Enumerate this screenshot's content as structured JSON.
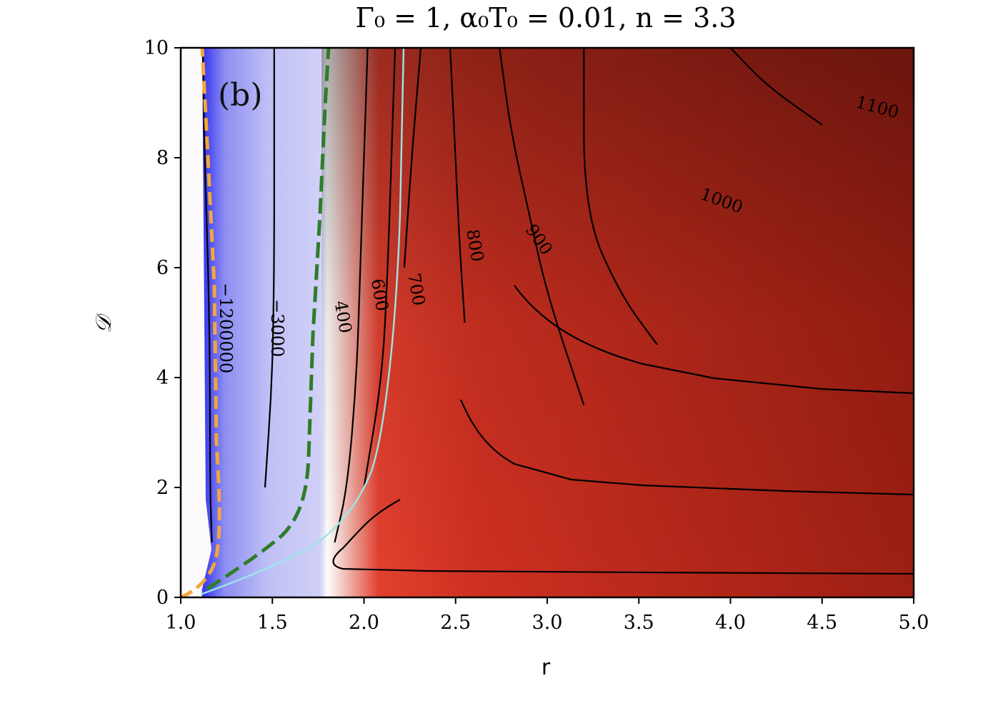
{
  "chart_data": {
    "type": "heatmap",
    "title": "Γ₀ = 1, α₀T₀ = 0.01, n = 3.3",
    "panel_label": "(b)",
    "xlabel": "r",
    "ylabel": "𝒟",
    "xlim": [
      1.0,
      5.0
    ],
    "ylim": [
      0,
      10
    ],
    "xticks": [
      "1.0",
      "1.5",
      "2.0",
      "2.5",
      "3.0",
      "3.5",
      "4.0",
      "4.5",
      "5.0"
    ],
    "yticks": [
      "0",
      "2",
      "4",
      "6",
      "8",
      "10"
    ],
    "colormap": "bwr",
    "colors": {
      "blue_strong": "#3b3bf0",
      "blue_light": "#c8c8f6",
      "white": "#ffffff",
      "red": "#dc2e20",
      "dark_red": "#7c140e",
      "orange_dashed": "#f2a73b",
      "green_dashed": "#2e7d2a",
      "cyan_contour": "#9ae6e6"
    },
    "contour_labels": [
      "−1200000",
      "−3000",
      "400",
      "600",
      "700",
      "800",
      "900",
      "1000",
      "1100"
    ],
    "contours": [
      {
        "level": "-1200000",
        "points": [
          [
            1.17,
            1.0
          ],
          [
            1.16,
            2
          ],
          [
            1.16,
            4
          ],
          [
            1.15,
            6
          ],
          [
            1.13,
            8
          ],
          [
            1.12,
            10
          ]
        ]
      },
      {
        "level": "-3000",
        "points": [
          [
            1.46,
            2
          ],
          [
            1.5,
            4
          ],
          [
            1.51,
            6
          ],
          [
            1.51,
            8
          ],
          [
            1.51,
            10
          ]
        ]
      },
      {
        "level": "400",
        "points": [
          [
            1.84,
            1
          ],
          [
            1.91,
            2
          ],
          [
            1.96,
            4
          ],
          [
            1.98,
            6
          ],
          [
            2.0,
            8
          ],
          [
            2.02,
            10
          ]
        ]
      },
      {
        "level": "600",
        "points": [
          [
            2.0,
            2
          ],
          [
            2.1,
            4
          ],
          [
            2.13,
            6
          ],
          [
            2.15,
            8
          ],
          [
            2.17,
            10
          ]
        ]
      },
      {
        "level": "700",
        "points": [
          [
            2.22,
            6
          ],
          [
            2.26,
            8
          ],
          [
            2.31,
            10
          ]
        ]
      },
      {
        "level": "800",
        "points": [
          [
            2.55,
            5
          ],
          [
            2.52,
            6.5
          ],
          [
            2.5,
            8
          ],
          [
            2.47,
            10
          ]
        ]
      },
      {
        "level": "900",
        "points": [
          [
            3.2,
            3.5
          ],
          [
            3.0,
            5.5
          ],
          [
            2.9,
            7
          ],
          [
            2.8,
            8.5
          ],
          [
            2.74,
            10
          ]
        ]
      },
      {
        "level": "1000",
        "points": [
          [
            3.6,
            4.6
          ],
          [
            3.4,
            5.5
          ],
          [
            3.2,
            7
          ],
          [
            3.2,
            10
          ]
        ]
      },
      {
        "level": "1100",
        "points": [
          [
            4.5,
            8.6
          ],
          [
            4.2,
            9.3
          ],
          [
            4.0,
            10
          ]
        ]
      }
    ]
  }
}
